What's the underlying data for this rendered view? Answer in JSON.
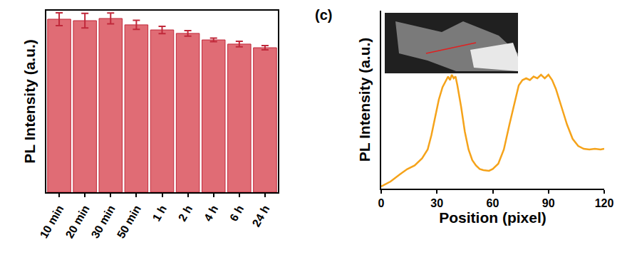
{
  "chart_data": [
    {
      "type": "bar",
      "ylabel": "PL Intensity (a.u.)",
      "categories": [
        "10 min",
        "20 min",
        "30 min",
        "50 min",
        "1 h",
        "2 h",
        "4 h",
        "6 h",
        "24 h"
      ],
      "values": [
        95.3,
        94.5,
        95.7,
        92.2,
        89.4,
        87.5,
        83.9,
        81.6,
        79.6
      ],
      "errors": [
        3.5,
        4,
        3,
        2.5,
        2,
        1.5,
        1,
        1.5,
        1.2
      ],
      "color": "#e06c75",
      "ylim": [
        0,
        100
      ],
      "tick_labels": "x"
    },
    {
      "type": "line",
      "title": "(c)",
      "xlabel": "Position (pixel)",
      "ylabel": "PL Intensity (a.u.)",
      "x": [
        0,
        5,
        10,
        14,
        18,
        22,
        25,
        27,
        29,
        31,
        33,
        35,
        36,
        37,
        38,
        39,
        40,
        41,
        43,
        45,
        47,
        49,
        51,
        53,
        55,
        58,
        60,
        63,
        66,
        69,
        72,
        74,
        76,
        78,
        80,
        82,
        84,
        86,
        88,
        90,
        92,
        94,
        97,
        100,
        103,
        106,
        109,
        112,
        115,
        118,
        120
      ],
      "values": [
        1.2,
        4,
        8,
        11,
        13,
        17,
        22,
        30,
        40,
        50,
        57,
        61,
        63,
        61,
        64,
        62,
        63,
        58,
        46,
        32,
        22,
        16,
        13,
        11,
        10.4,
        10,
        11,
        14,
        22,
        36,
        50,
        58,
        61,
        62,
        61,
        63,
        62,
        64,
        62,
        64,
        61,
        56,
        46,
        36,
        28,
        24,
        22.4,
        22,
        22.4,
        22,
        22.4
      ],
      "color": "#f5a31a",
      "xlim": [
        0,
        120
      ],
      "xticks": [
        0,
        30,
        60,
        90,
        120
      ],
      "ylim": [
        0,
        100
      ],
      "tick_labels": "x"
    }
  ]
}
